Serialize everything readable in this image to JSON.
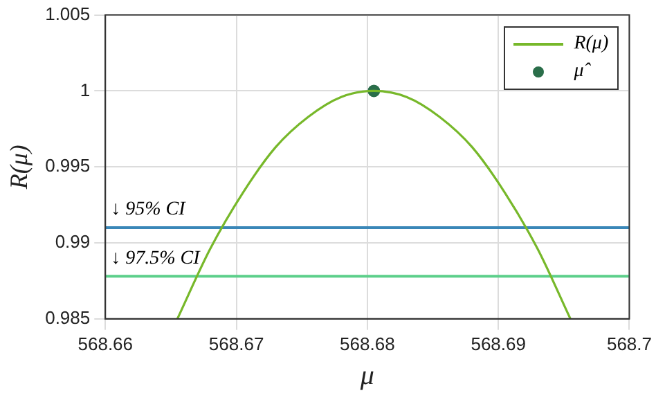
{
  "chart_data": {
    "type": "line",
    "xlabel": "μ",
    "ylabel": "R(μ)",
    "xlim": [
      568.66,
      568.7
    ],
    "xticks": [
      568.66,
      568.67,
      568.68,
      568.69,
      568.7
    ],
    "ylim": [
      0.985,
      1.005
    ],
    "yticks": [
      0.985,
      0.99,
      0.995,
      1,
      1.005
    ],
    "grid": true,
    "legend": "top right",
    "series": [
      {
        "name": "R(μ)",
        "type": "line",
        "color": "#77b82a",
        "marker": "none",
        "x": [
          568.6655,
          568.668,
          568.6705,
          568.673,
          568.6755,
          568.678,
          568.6805,
          568.683,
          568.6855,
          568.688,
          568.6905,
          568.693,
          568.6955
        ],
        "values": [
          0.985,
          0.9896,
          0.9933,
          0.9963,
          0.9983,
          0.9996,
          1,
          0.9996,
          0.9983,
          0.9963,
          0.9933,
          0.9896,
          0.985
        ]
      },
      {
        "name": "μ̂",
        "type": "scatter",
        "color": "#2a6e4a",
        "marker": "circle",
        "x": [
          568.6805
        ],
        "values": [
          1
        ]
      }
    ],
    "ref_lines": [
      {
        "axis": "y",
        "value": 0.991,
        "label": "↓ 95% CI",
        "color": "#3a87b8"
      },
      {
        "axis": "y",
        "value": 0.9878,
        "label": "↓ 97.5% CI",
        "color": "#5ccf8a"
      }
    ]
  }
}
